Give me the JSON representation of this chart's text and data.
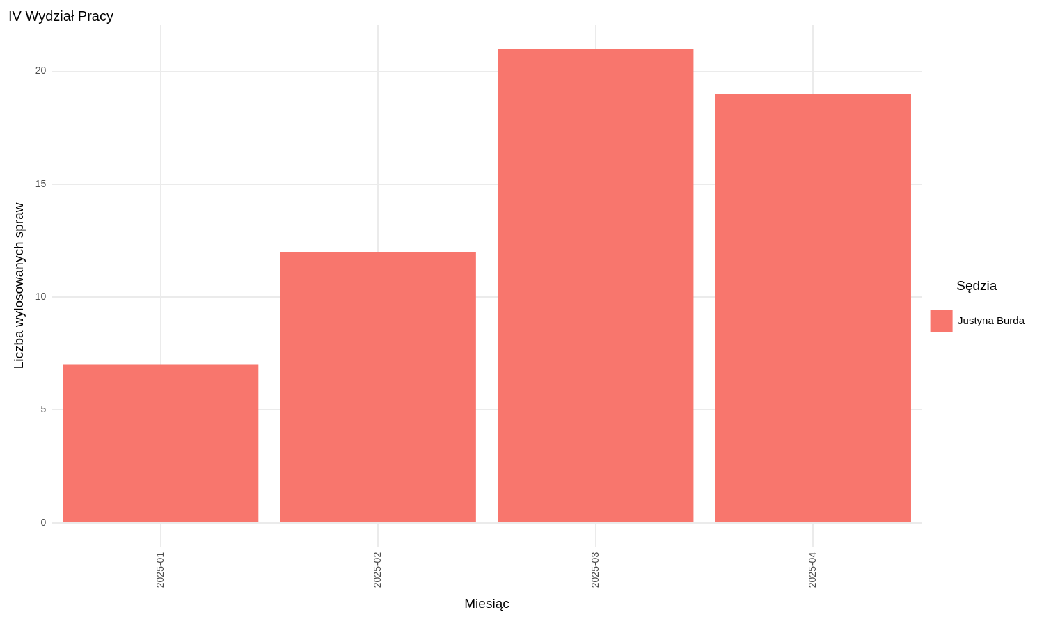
{
  "chart_data": {
    "type": "bar",
    "title": "IV Wydział Pracy",
    "xlabel": "Miesiąc",
    "ylabel": "Liczba wylosowanych spraw",
    "legend_title": "Sędzia",
    "categories": [
      "2025-01",
      "2025-02",
      "2025-03",
      "2025-04"
    ],
    "series": [
      {
        "name": "Justyna Burda",
        "color": "#f8766d",
        "values": [
          7,
          12,
          21,
          19
        ]
      }
    ],
    "ylim": [
      -1.05,
      22.05
    ],
    "yticks": [
      0,
      5,
      10,
      15,
      20
    ],
    "grid": true,
    "legend": "right"
  }
}
